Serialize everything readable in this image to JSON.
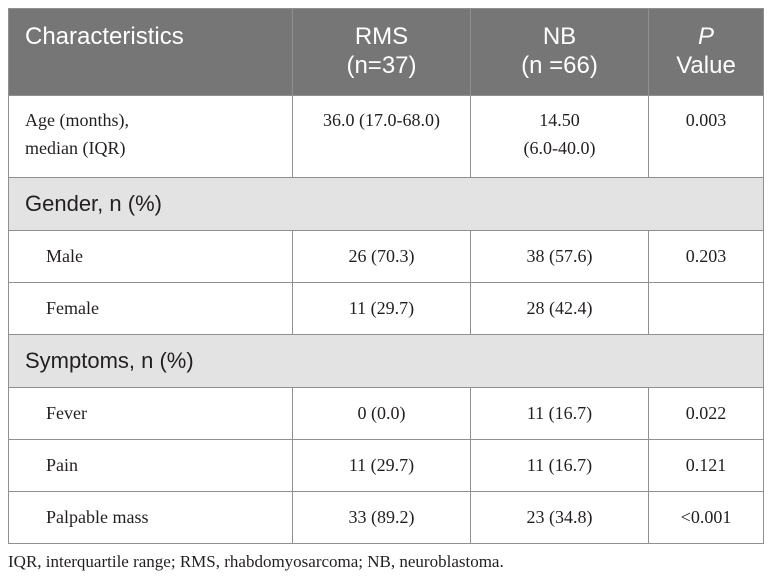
{
  "table": {
    "headers": {
      "characteristics": "Characteristics",
      "rms_line1": "RMS",
      "rms_line2": "(n=37)",
      "nb_line1": "NB",
      "nb_line2": "(n =66)",
      "p_line1": "P",
      "p_line2": "Value"
    },
    "age": {
      "label_line1": "Age (months),",
      "label_line2": "median (IQR)",
      "rms": "36.0 (17.0-68.0)",
      "nb_line1": "14.50",
      "nb_line2": "(6.0-40.0)",
      "p": "0.003"
    },
    "gender": {
      "title": "Gender, n (%)",
      "rows": [
        {
          "label": "Male",
          "rms": "26 (70.3)",
          "nb": "38 (57.6)",
          "p": "0.203"
        },
        {
          "label": "Female",
          "rms": "11 (29.7)",
          "nb": "28 (42.4)",
          "p": ""
        }
      ]
    },
    "symptoms": {
      "title": "Symptoms, n (%)",
      "rows": [
        {
          "label": "Fever",
          "rms": "0 (0.0)",
          "nb": "11 (16.7)",
          "p": "0.022"
        },
        {
          "label": "Pain",
          "rms": "11 (29.7)",
          "nb": "11 (16.7)",
          "p": "0.121"
        },
        {
          "label": "Palpable mass",
          "rms": "33 (89.2)",
          "nb": "23 (34.8)",
          "p": "<0.001"
        }
      ]
    }
  },
  "footnote": "IQR, interquartile range; RMS, rhabdomyosarcoma; NB, neuroblastoma.",
  "colors": {
    "header_bg": "#767676",
    "section_bg": "#e3e3e3",
    "border": "#8f8f8f",
    "text": "#231f20"
  }
}
